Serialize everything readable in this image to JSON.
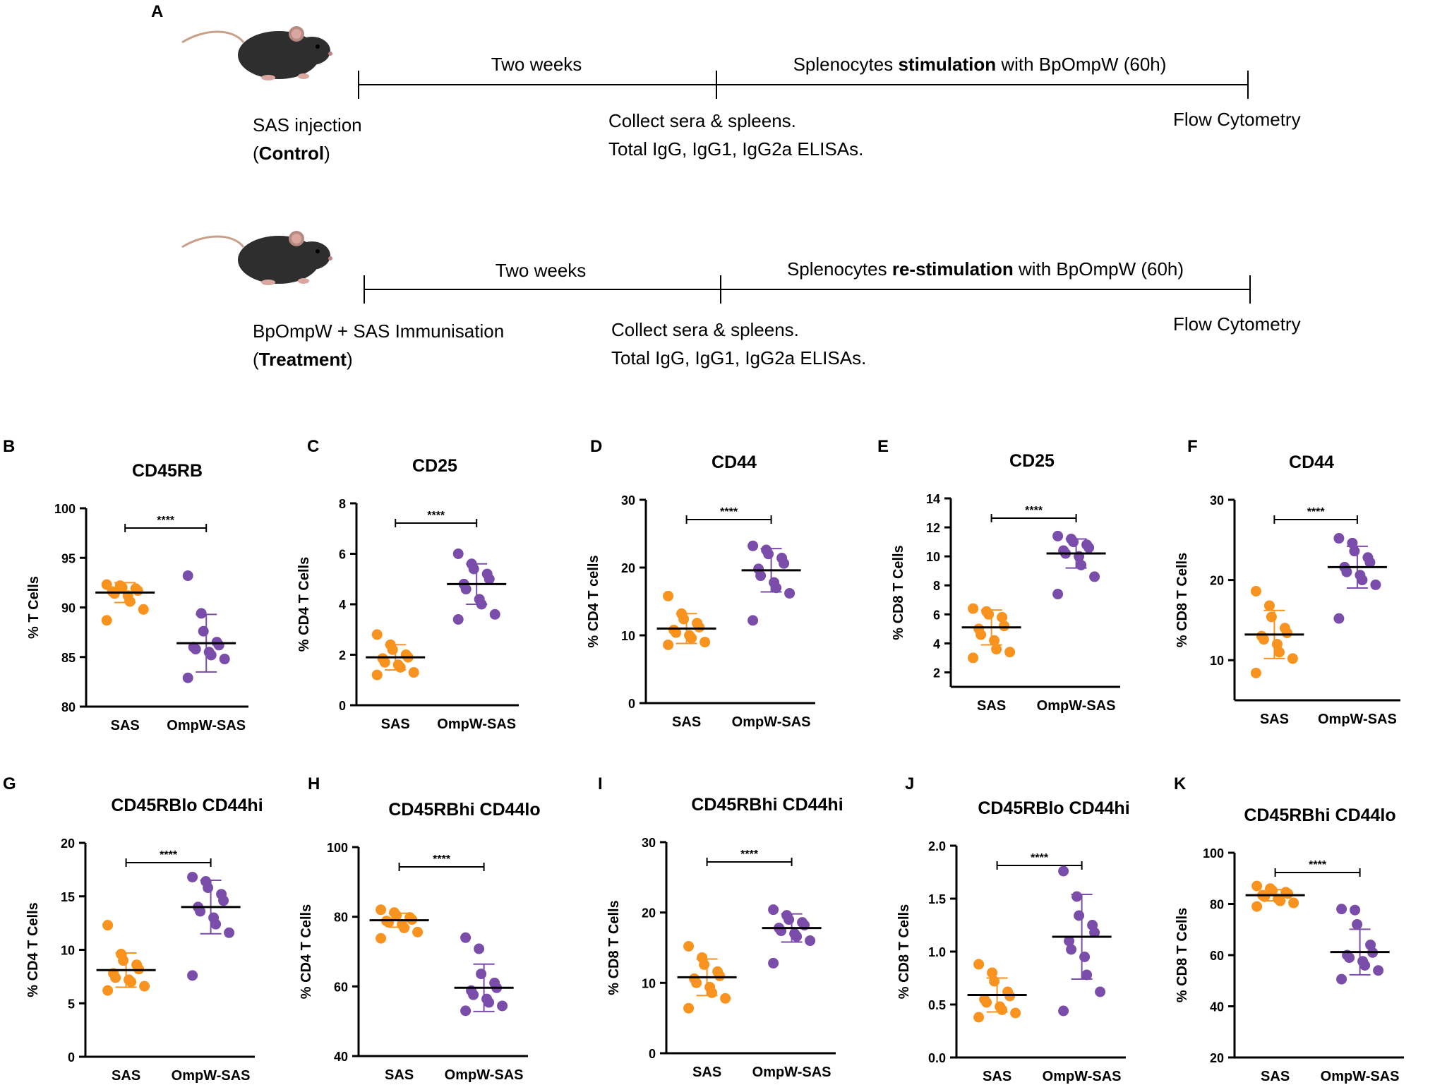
{
  "colors": {
    "control": "#F7931E",
    "treatment": "#7B4DAA",
    "line": "#000000"
  },
  "panel_a": {
    "label": "A",
    "rows": [
      {
        "name": "control",
        "seg1": "Two weeks",
        "seg2_pre": "Splenocytes ",
        "seg2_bold": "stimulation",
        "seg2_post": " with BpOmpW (60h)",
        "start_line1": "SAS injection",
        "start_paren_open": "(",
        "start_bold": "Control",
        "start_paren_close": ")",
        "mid_line1": "Collect sera & spleens.",
        "mid_line2": "Total IgG, IgG1, IgG2a ELISAs.",
        "end": "Flow Cytometry",
        "icon": "mouse-icon"
      },
      {
        "name": "treatment",
        "seg1": "Two weeks",
        "seg2_pre": "Splenocytes ",
        "seg2_bold": "re-stimulation",
        "seg2_post": " with BpOmpW (60h)",
        "start_line1": "BpOmpW + SAS Immunisation",
        "start_paren_open": "(",
        "start_bold": "Treatment",
        "start_paren_close": ")",
        "mid_line1": "Collect sera & spleens.",
        "mid_line2": "Total IgG, IgG1, IgG2a ELISAs.",
        "end": "Flow Cytometry",
        "icon": "mouse-icon"
      }
    ]
  },
  "chart_data": [
    {
      "label": "B",
      "type": "scatter",
      "title": "CD45RB",
      "ylabel": "% T Cells",
      "categories": [
        "SAS",
        "OmpW-SAS"
      ],
      "ylim": [
        80,
        100
      ],
      "yticks": [
        "80",
        "85",
        "90",
        "95",
        "100"
      ],
      "significance": "****",
      "series": [
        {
          "name": "SAS",
          "values": [
            92.3,
            92.2,
            92.0,
            91.9,
            91.7,
            91.6,
            91.4,
            91.2,
            90.6,
            89.8,
            88.7
          ],
          "mean": 91.5,
          "sd": 1.0
        },
        {
          "name": "OmpW-SAS",
          "values": [
            93.2,
            89.4,
            87.6,
            86.5,
            86.2,
            86.0,
            85.8,
            85.5,
            85.2,
            84.8,
            82.9
          ],
          "mean": 86.4,
          "sd": 2.9
        }
      ]
    },
    {
      "label": "C",
      "type": "scatter",
      "title": "CD25",
      "ylabel": "% CD4 T Cells",
      "categories": [
        "SAS",
        "OmpW-SAS"
      ],
      "ylim": [
        0,
        8
      ],
      "yticks": [
        "0",
        "2",
        "4",
        "6",
        "8"
      ],
      "significance": "****",
      "series": [
        {
          "name": "SAS",
          "values": [
            2.8,
            2.4,
            2.2,
            2.0,
            1.9,
            1.85,
            1.7,
            1.6,
            1.5,
            1.3,
            1.2
          ],
          "mean": 1.9,
          "sd": 0.5
        },
        {
          "name": "OmpW-SAS",
          "values": [
            6.0,
            5.6,
            5.4,
            5.2,
            5.0,
            4.8,
            4.6,
            4.2,
            4.0,
            3.6,
            3.4
          ],
          "mean": 4.8,
          "sd": 0.8
        }
      ]
    },
    {
      "label": "D",
      "type": "scatter",
      "title": "CD44",
      "ylabel": "% CD4 T cells",
      "categories": [
        "SAS",
        "OmpW-SAS"
      ],
      "ylim": [
        0,
        30
      ],
      "yticks": [
        "0",
        "10",
        "20",
        "30"
      ],
      "significance": "****",
      "series": [
        {
          "name": "SAS",
          "values": [
            15.8,
            13.2,
            12.4,
            11.8,
            11.2,
            10.8,
            10.4,
            10.0,
            9.6,
            9.0,
            8.6
          ],
          "mean": 11.0,
          "sd": 2.2
        },
        {
          "name": "OmpW-SAS",
          "values": [
            23.2,
            22.6,
            22.0,
            21.4,
            20.6,
            19.8,
            18.8,
            17.8,
            17.0,
            16.2,
            12.2
          ],
          "mean": 19.6,
          "sd": 3.2
        }
      ]
    },
    {
      "label": "E",
      "type": "scatter",
      "title": "CD25",
      "ylabel": "% CD8 T Cells",
      "categories": [
        "SAS",
        "OmpW-SAS"
      ],
      "ylim": [
        1,
        14
      ],
      "yticks": [
        "2",
        "4",
        "6",
        "8",
        "10",
        "12",
        "14"
      ],
      "significance": "****",
      "series": [
        {
          "name": "SAS",
          "values": [
            6.4,
            6.2,
            6.0,
            5.8,
            5.2,
            5.0,
            4.6,
            4.2,
            3.6,
            3.4,
            3.0
          ],
          "mean": 5.1,
          "sd": 1.2
        },
        {
          "name": "OmpW-SAS",
          "values": [
            11.4,
            11.2,
            11.0,
            10.8,
            10.6,
            10.4,
            10.2,
            10.0,
            9.4,
            8.6,
            7.4
          ],
          "mean": 10.2,
          "sd": 1.0
        }
      ]
    },
    {
      "label": "F",
      "type": "scatter",
      "title": "CD44",
      "ylabel": "% CD8 T Cells",
      "categories": [
        "SAS",
        "OmpW-SAS"
      ],
      "ylim": [
        5,
        30
      ],
      "yticks": [
        "10",
        "20",
        "30"
      ],
      "significance": "****",
      "series": [
        {
          "name": "SAS",
          "values": [
            18.6,
            16.8,
            15.4,
            14.0,
            13.4,
            13.0,
            12.6,
            12.0,
            11.0,
            10.2,
            8.4
          ],
          "mean": 13.2,
          "sd": 3.0
        },
        {
          "name": "OmpW-SAS",
          "values": [
            25.2,
            24.6,
            23.6,
            22.8,
            22.2,
            21.6,
            21.0,
            20.6,
            20.0,
            19.4,
            15.2
          ],
          "mean": 21.6,
          "sd": 2.6
        }
      ]
    },
    {
      "label": "G",
      "type": "scatter",
      "title": "CD45RBlo CD44hi",
      "ylabel": "% CD4 T Cells",
      "categories": [
        "SAS",
        "OmpW-SAS"
      ],
      "ylim": [
        0,
        20
      ],
      "yticks": [
        "0",
        "5",
        "10",
        "15",
        "20"
      ],
      "significance": "****",
      "series": [
        {
          "name": "SAS",
          "values": [
            12.3,
            9.6,
            9.0,
            8.6,
            8.2,
            7.8,
            7.4,
            7.2,
            7.0,
            6.6,
            6.2
          ],
          "mean": 8.1,
          "sd": 1.6
        },
        {
          "name": "OmpW-SAS",
          "values": [
            16.8,
            16.4,
            15.8,
            15.2,
            14.6,
            14.0,
            13.6,
            13.0,
            12.4,
            11.6,
            7.6
          ],
          "mean": 14.0,
          "sd": 2.5
        }
      ]
    },
    {
      "label": "H",
      "type": "scatter",
      "title": "CD45RBhi CD44lo",
      "ylabel": "% CD4 T Cells",
      "categories": [
        "SAS",
        "OmpW-SAS"
      ],
      "ylim": [
        40,
        100
      ],
      "yticks": [
        "40",
        "60",
        "80",
        "100"
      ],
      "significance": "****",
      "series": [
        {
          "name": "SAS",
          "values": [
            82.0,
            81.2,
            80.4,
            79.8,
            79.2,
            78.8,
            78.4,
            77.8,
            76.8,
            75.6,
            73.8
          ],
          "mean": 79.0,
          "sd": 2.0
        },
        {
          "name": "OmpW-SAS",
          "values": [
            74.0,
            70.8,
            63.6,
            61.0,
            59.6,
            58.8,
            57.6,
            56.4,
            55.4,
            54.4,
            53.0
          ],
          "mean": 59.6,
          "sd": 6.8
        }
      ]
    },
    {
      "label": "I",
      "type": "scatter",
      "title": "CD45RBhi CD44hi",
      "ylabel": "% CD8 T Cells",
      "categories": [
        "SAS",
        "OmpW-SAS"
      ],
      "ylim": [
        0,
        30
      ],
      "yticks": [
        "0",
        "10",
        "20",
        "30"
      ],
      "significance": "****",
      "series": [
        {
          "name": "SAS",
          "values": [
            15.2,
            13.6,
            12.6,
            11.6,
            11.0,
            10.6,
            10.0,
            9.4,
            8.6,
            7.8,
            6.4
          ],
          "mean": 10.8,
          "sd": 2.6
        },
        {
          "name": "OmpW-SAS",
          "values": [
            20.4,
            19.6,
            19.0,
            18.6,
            18.2,
            17.8,
            17.4,
            17.0,
            16.6,
            16.0,
            12.8
          ],
          "mean": 17.8,
          "sd": 2.0
        }
      ]
    },
    {
      "label": "J",
      "type": "scatter",
      "title": "CD45RBlo CD44hi",
      "ylabel": "% CD8 T Cells",
      "categories": [
        "SAS",
        "OmpW-SAS"
      ],
      "ylim": [
        0,
        2.0
      ],
      "yticks": [
        "0.0",
        "0.5",
        "1.0",
        "1.5",
        "2.0"
      ],
      "significance": "****",
      "series": [
        {
          "name": "SAS",
          "values": [
            0.88,
            0.8,
            0.72,
            0.62,
            0.58,
            0.55,
            0.52,
            0.48,
            0.45,
            0.42,
            0.38
          ],
          "mean": 0.59,
          "sd": 0.16
        },
        {
          "name": "OmpW-SAS",
          "values": [
            1.76,
            1.52,
            1.34,
            1.25,
            1.18,
            1.1,
            1.02,
            0.95,
            0.78,
            0.62,
            0.44
          ],
          "mean": 1.14,
          "sd": 0.4
        }
      ]
    },
    {
      "label": "K",
      "type": "scatter",
      "title": "CD45RBhi CD44lo",
      "ylabel": "% CD8 T Cells",
      "categories": [
        "SAS",
        "OmpW-SAS"
      ],
      "ylim": [
        20,
        100
      ],
      "yticks": [
        "20",
        "40",
        "60",
        "80",
        "100"
      ],
      "significance": "****",
      "series": [
        {
          "name": "SAS",
          "values": [
            87.0,
            86.0,
            85.2,
            84.6,
            84.0,
            83.4,
            82.8,
            82.0,
            81.2,
            80.4,
            79.0
          ],
          "mean": 83.4,
          "sd": 2.2
        },
        {
          "name": "OmpW-SAS",
          "values": [
            78.0,
            77.6,
            72.0,
            64.0,
            61.0,
            60.0,
            59.0,
            57.6,
            56.0,
            54.0,
            50.6
          ],
          "mean": 61.2,
          "sd": 8.9
        }
      ]
    }
  ]
}
